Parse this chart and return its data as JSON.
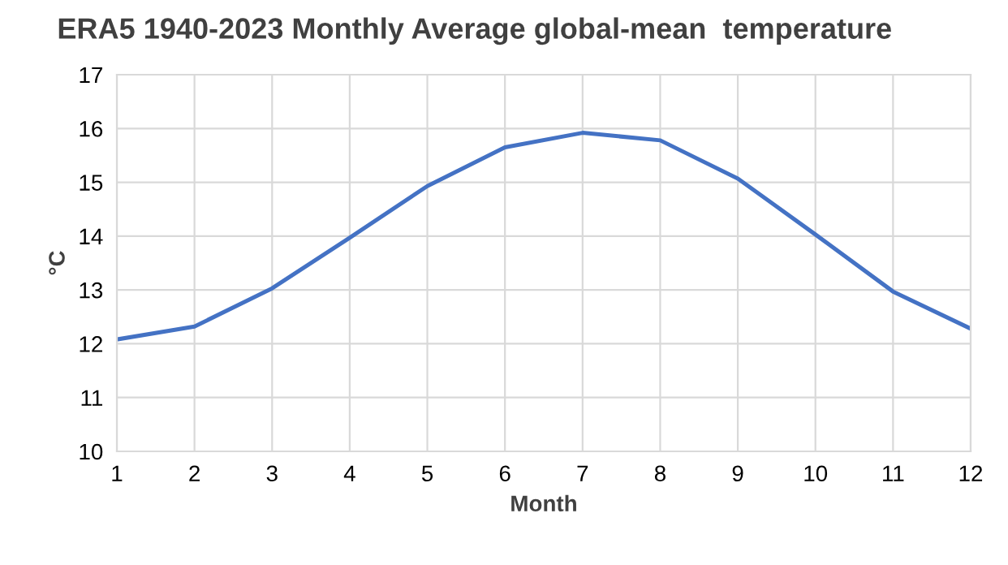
{
  "chart_data": {
    "type": "line",
    "title": "ERA5 1940-2023 Monthly Average global-mean  temperature",
    "xlabel": "Month",
    "ylabel": "°C",
    "x": [
      1,
      2,
      3,
      4,
      5,
      6,
      7,
      8,
      9,
      10,
      11,
      12
    ],
    "series": [
      {
        "color": "#4472c4",
        "values": [
          12.08,
          12.32,
          13.03,
          13.97,
          14.93,
          15.65,
          15.92,
          15.78,
          15.07,
          14.03,
          12.97,
          12.28
        ]
      }
    ],
    "xlim": [
      1,
      12
    ],
    "xticks": [
      1,
      2,
      3,
      4,
      5,
      6,
      7,
      8,
      9,
      10,
      11,
      12
    ],
    "ylim": [
      10,
      17
    ],
    "yticks": [
      10,
      11,
      12,
      13,
      14,
      15,
      16,
      17
    ],
    "grid": true,
    "marker": "none",
    "line_style": "solid"
  }
}
